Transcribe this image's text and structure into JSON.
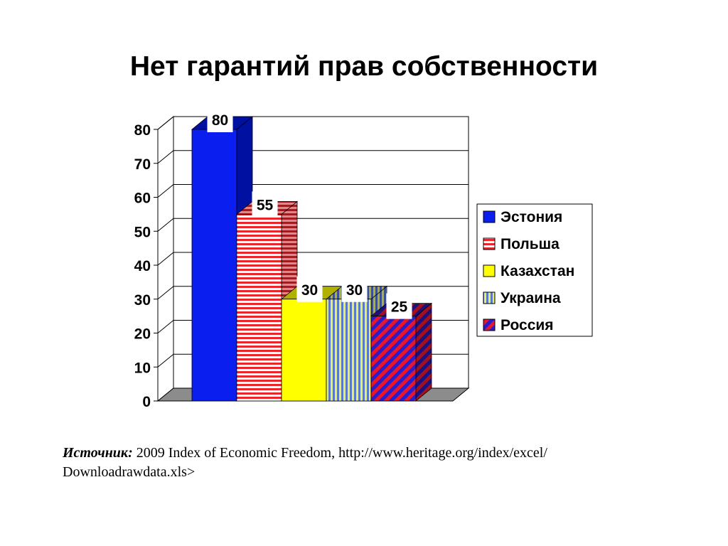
{
  "slide": {
    "title": "Нет гарантий прав собственности"
  },
  "source": {
    "label": "Источник:",
    "text_line1": " 2009 Index of Economic Freedom, http://www.heritage.org/index/excel/",
    "text_line2": "Downloadrawdata.xls>"
  },
  "chart_data": {
    "type": "bar",
    "title": "",
    "xlabel": "",
    "ylabel": "",
    "ylim": [
      0,
      80
    ],
    "yticks": [
      "0",
      "10",
      "20",
      "30",
      "40",
      "50",
      "60",
      "70",
      "80"
    ],
    "grid": true,
    "legend_position": "right",
    "three_d": true,
    "series": [
      {
        "name": "Эстония",
        "value": 80,
        "label": "80",
        "color": "#0a1ef0",
        "side_color": "#0010a0",
        "pattern": "solid"
      },
      {
        "name": "Польша",
        "value": 55,
        "label": "55",
        "color": "#e8262c",
        "side_color": "#a01c20",
        "pattern": "horizontal-stripes"
      },
      {
        "name": "Казахстан",
        "value": 30,
        "label": "30",
        "color": "#ffff00",
        "side_color": "#b0b000",
        "pattern": "solid"
      },
      {
        "name": "Украина",
        "value": 30,
        "label": "30",
        "color": "#d8e85a",
        "side_color": "#5a78c8",
        "pattern": "vertical-stripes"
      },
      {
        "name": "Россия",
        "value": 25,
        "label": "25",
        "color": "#e8162c",
        "side_color": "#2a1cc8",
        "pattern": "diagonal-stripes"
      }
    ]
  }
}
